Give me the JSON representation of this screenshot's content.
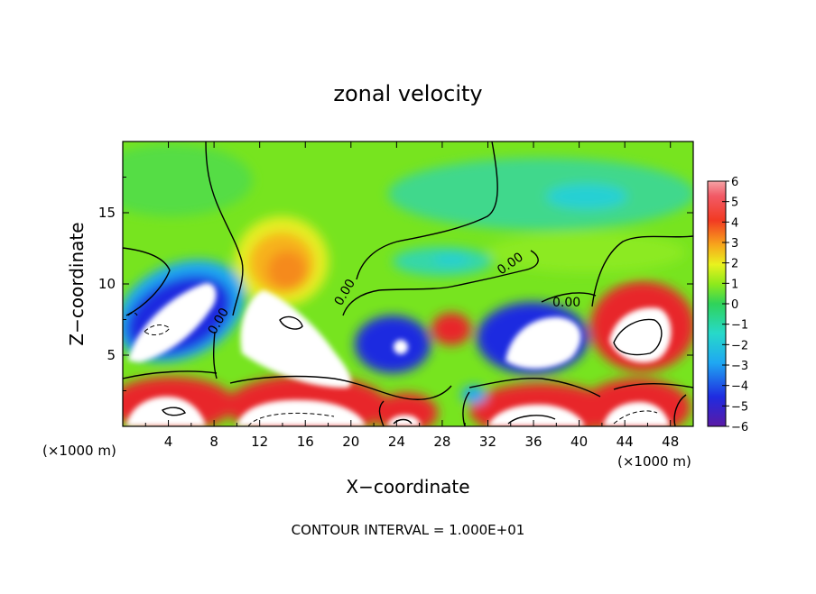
{
  "chart_data": {
    "type": "heatmap",
    "title": "zonal velocity",
    "xlabel": "X−coordinate",
    "ylabel": "Z−coordinate",
    "x_scale_note_left": "(×1000 m)",
    "x_scale_note_right": "(×1000 m)",
    "xlim": [
      0,
      50
    ],
    "ylim": [
      0,
      20
    ],
    "x_ticks": [
      4,
      8,
      12,
      16,
      20,
      24,
      28,
      32,
      36,
      40,
      44,
      48
    ],
    "y_ticks": [
      5,
      10,
      15
    ],
    "contour_labels": [
      "0.00",
      "0.00",
      "0.00",
      "0.00"
    ],
    "colorbar": {
      "min": -6,
      "max": 6,
      "tick_labels": [
        "6",
        "5",
        "4",
        "3",
        "2",
        "1",
        "0",
        "−1",
        "−2",
        "−3",
        "−4",
        "−5",
        "−6"
      ]
    },
    "footer": "CONTOUR INTERVAL = 1.000E+01",
    "colors": {
      "field_background": "#77e41f",
      "positive_strong": "#e8272a",
      "positive_moderate": "#f7921e",
      "negative_strong": "#1f2be0",
      "negative_deep": "#5a1aa5",
      "saturated": "#ffffff"
    }
  }
}
